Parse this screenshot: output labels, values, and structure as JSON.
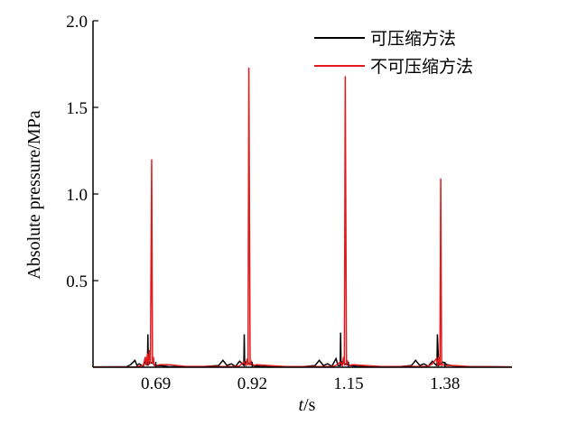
{
  "chart_data": {
    "type": "line",
    "xlabel_italic": "t",
    "xlabel_unit": "/s",
    "ylabel": "Absolute pressure/MPa",
    "ylim": [
      0,
      2.0
    ],
    "xlim": [
      0.54,
      1.54
    ],
    "grid": false,
    "legend_position": "top-right",
    "y_ticks": [
      {
        "value": 0.5,
        "label": "0.5"
      },
      {
        "value": 1.0,
        "label": "1.0"
      },
      {
        "value": 1.5,
        "label": "1.5"
      },
      {
        "value": 2.0,
        "label": "2.0"
      }
    ],
    "x_ticks": [
      {
        "value": 0.69,
        "label": "0.69"
      },
      {
        "value": 0.92,
        "label": "0.92"
      },
      {
        "value": 1.15,
        "label": "1.15"
      },
      {
        "value": 1.38,
        "label": "1.38"
      }
    ],
    "series": [
      {
        "name": "可压缩方法",
        "color": "#000000",
        "x": [
          0.54,
          0.62,
          0.63,
          0.64,
          0.645,
          0.65,
          0.66,
          0.665,
          0.67,
          0.671,
          0.672,
          0.675,
          0.685,
          0.69,
          0.7,
          0.72,
          0.8,
          0.84,
          0.85,
          0.86,
          0.87,
          0.88,
          0.89,
          0.9,
          0.901,
          0.902,
          0.905,
          0.915,
          0.925,
          0.94,
          0.96,
          1.04,
          1.07,
          1.08,
          1.09,
          1.1,
          1.11,
          1.12,
          1.125,
          1.13,
          1.131,
          1.132,
          1.135,
          1.145,
          1.155,
          1.17,
          1.2,
          1.27,
          1.3,
          1.31,
          1.32,
          1.33,
          1.34,
          1.35,
          1.36,
          1.361,
          1.362,
          1.365,
          1.375,
          1.385,
          1.4,
          1.43,
          1.54
        ],
        "y": [
          0.002,
          0.003,
          0.015,
          0.04,
          0.01,
          0.02,
          0.005,
          0.035,
          0.01,
          0.19,
          0.01,
          0.03,
          0.02,
          0.008,
          0.01,
          0.004,
          0.003,
          0.01,
          0.04,
          0.01,
          0.02,
          0.005,
          0.035,
          0.01,
          0.19,
          0.01,
          0.03,
          0.02,
          0.008,
          0.005,
          0.003,
          0.003,
          0.01,
          0.04,
          0.01,
          0.02,
          0.005,
          0.05,
          0.01,
          0.01,
          0.2,
          0.01,
          0.03,
          0.015,
          0.01,
          0.005,
          0.003,
          0.003,
          0.01,
          0.04,
          0.01,
          0.02,
          0.005,
          0.035,
          0.01,
          0.01,
          0.19,
          0.01,
          0.03,
          0.015,
          0.008,
          0.004,
          0.002
        ]
      },
      {
        "name": "不可压缩方法",
        "color": "#e31a1c",
        "x": [
          0.54,
          0.64,
          0.66,
          0.665,
          0.667,
          0.67,
          0.672,
          0.675,
          0.677,
          0.68,
          0.682,
          0.684,
          0.686,
          0.69,
          0.7,
          0.72,
          0.76,
          0.88,
          0.89,
          0.9,
          0.905,
          0.908,
          0.91,
          0.912,
          0.915,
          0.918,
          0.92,
          0.922,
          0.926,
          0.93,
          0.96,
          1.0,
          1.11,
          1.12,
          1.13,
          1.135,
          1.138,
          1.14,
          1.142,
          1.145,
          1.147,
          1.15,
          1.16,
          1.19,
          1.23,
          1.34,
          1.35,
          1.36,
          1.363,
          1.365,
          1.368,
          1.37,
          1.372,
          1.375,
          1.38,
          1.4,
          1.44,
          1.54
        ],
        "y": [
          0.001,
          0.002,
          0.01,
          0.06,
          0.01,
          0.08,
          0.01,
          0.1,
          0.02,
          1.2,
          0.02,
          0.06,
          0.01,
          0.01,
          0.015,
          0.015,
          0.005,
          0.004,
          0.008,
          0.03,
          0.01,
          0.05,
          0.01,
          1.73,
          0.01,
          0.03,
          0.01,
          0.015,
          0.01,
          0.015,
          0.01,
          0.004,
          0.004,
          0.01,
          0.03,
          0.01,
          0.06,
          0.01,
          1.68,
          0.01,
          0.04,
          0.01,
          0.015,
          0.01,
          0.004,
          0.005,
          0.02,
          0.05,
          0.01,
          0.06,
          0.01,
          1.09,
          0.01,
          0.015,
          0.01,
          0.01,
          0.004,
          0.001
        ]
      }
    ]
  }
}
